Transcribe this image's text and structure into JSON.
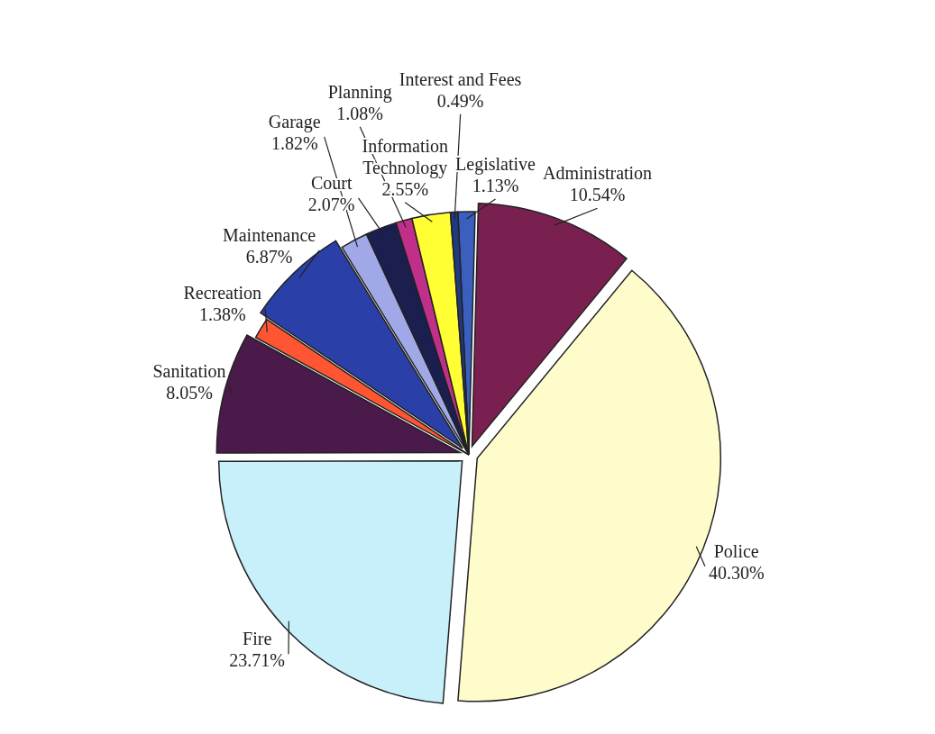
{
  "chart_data": {
    "type": "pie",
    "categories": [
      "Legislative",
      "Administration",
      "Police",
      "Fire",
      "Sanitation",
      "Recreation",
      "Maintenance",
      "Garage",
      "Court",
      "Planning",
      "Information Technology",
      "Interest and Fees"
    ],
    "values": [
      1.13,
      10.54,
      40.3,
      23.71,
      8.05,
      1.38,
      6.87,
      1.82,
      2.07,
      1.08,
      2.55,
      0.49
    ],
    "value_labels": [
      "1.13%",
      "10.54%",
      "40.30%",
      "23.71%",
      "8.05%",
      "1.38%",
      "6.87%",
      "1.82%",
      "2.07%",
      "1.08%",
      "2.55%",
      "0.49%"
    ],
    "colors": [
      "#3a5fbf",
      "#7a2050",
      "#fffccc",
      "#c8f0fa",
      "#4a1a4a",
      "#ff5533",
      "#2a40a8",
      "#a0a8e8",
      "#1a1f50",
      "#c0308a",
      "#ffff33",
      "#203a80"
    ]
  }
}
